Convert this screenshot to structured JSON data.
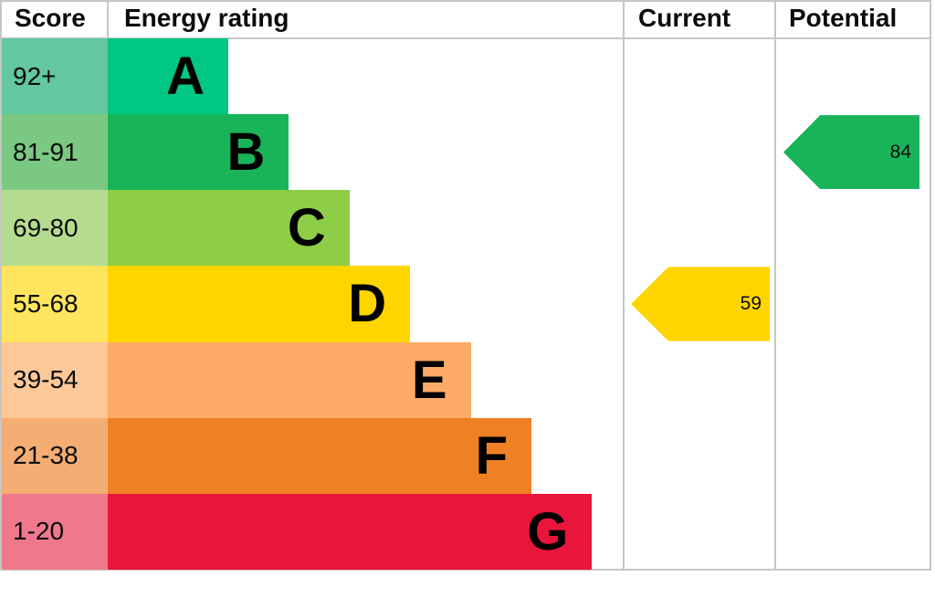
{
  "header": {
    "score": "Score",
    "energy_rating": "Energy rating",
    "current": "Current",
    "potential": "Potential"
  },
  "chart_data": {
    "type": "bar",
    "subtype": "epc-energy-rating",
    "columns": [
      "Score",
      "Energy rating",
      "Current",
      "Potential"
    ],
    "bands": [
      {
        "letter": "A",
        "score": "92+",
        "bar_color": "#00c781",
        "score_color": "#63c7a0"
      },
      {
        "letter": "B",
        "score": "81-91",
        "bar_color": "#19b459",
        "score_color": "#7bc883"
      },
      {
        "letter": "C",
        "score": "69-80",
        "bar_color": "#8dce46",
        "score_color": "#b5dc8e"
      },
      {
        "letter": "D",
        "score": "55-68",
        "bar_color": "#ffd500",
        "score_color": "#ffe55e"
      },
      {
        "letter": "E",
        "score": "39-54",
        "bar_color": "#fcaa65",
        "score_color": "#fdc897"
      },
      {
        "letter": "F",
        "score": "21-38",
        "bar_color": "#ef8023",
        "score_color": "#f4ad72"
      },
      {
        "letter": "G",
        "score": "1-20",
        "bar_color": "#e9153b",
        "score_color": "#f0788c"
      }
    ],
    "current": {
      "value": 59,
      "band": "D",
      "color": "#ffd500"
    },
    "potential": {
      "value": 84,
      "band": "B",
      "color": "#19b459"
    },
    "grid_color": "#c6c6c6",
    "legend_position": "none"
  }
}
